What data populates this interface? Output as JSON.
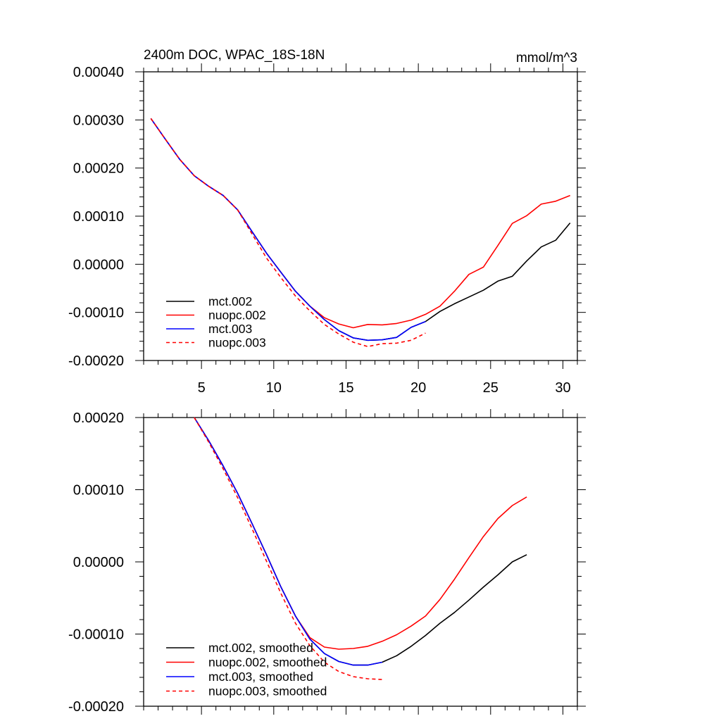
{
  "chart_data": [
    {
      "type": "line",
      "title": "2400m DOC, WPAC_18S-18N",
      "units": "mmol/m^3",
      "xlabel": "",
      "ylabel": "",
      "xlim": [
        1,
        31
      ],
      "ylim": [
        -0.0002,
        0.0004
      ],
      "x_ticks": [
        5,
        10,
        15,
        20,
        25,
        30
      ],
      "x_tick_labels": [
        "5",
        "10",
        "15",
        "20",
        "25",
        "30"
      ],
      "y_ticks": [
        -0.0002,
        -0.0001,
        0.0,
        0.0001,
        0.0002,
        0.0003,
        0.0004
      ],
      "y_tick_labels": [
        "-0.00020",
        "-0.00010",
        "0.00000",
        "0.00010",
        "0.00020",
        "0.00030",
        "0.00040"
      ],
      "legend_position": "bottom-left",
      "series": [
        {
          "name": "mct.002",
          "color": "#000000",
          "dash": "solid",
          "x": [
            1.5,
            2.5,
            3.5,
            4.5,
            5.5,
            6.5,
            7.5,
            8.5,
            9.5,
            10.5,
            11.5,
            12.5,
            13.5,
            14.5,
            15.5,
            16.5,
            17.5,
            18.5,
            19.5,
            20.5,
            21.5,
            22.5,
            23.5,
            24.5,
            25.5,
            26.5,
            27.5,
            28.5,
            29.5,
            30.5
          ],
          "values": [
            0.000303,
            0.00026,
            0.000218,
            0.000184,
            0.000162,
            0.000143,
            0.000113,
            6.8e-05,
            2.3e-05,
            -1.7e-05,
            -5.6e-05,
            -8.7e-05,
            -0.000115,
            -0.000138,
            -0.000153,
            -0.000158,
            -0.000157,
            -0.000152,
            -0.000131,
            -0.000119,
            -9.8e-05,
            -8.2e-05,
            -6.8e-05,
            -5.4e-05,
            -3.5e-05,
            -2.5e-05,
            7e-06,
            3.6e-05,
            5e-05,
            8.6e-05
          ]
        },
        {
          "name": "nuopc.002",
          "color": "#ff0000",
          "dash": "solid",
          "x": [
            1.5,
            2.5,
            3.5,
            4.5,
            5.5,
            6.5,
            7.5,
            8.5,
            9.5,
            10.5,
            11.5,
            12.5,
            13.5,
            14.5,
            15.5,
            16.5,
            17.5,
            18.5,
            19.5,
            20.5,
            21.5,
            22.5,
            23.5,
            24.5,
            25.5,
            26.5,
            27.5,
            28.5,
            29.5,
            30.5
          ],
          "values": [
            0.000303,
            0.00026,
            0.000218,
            0.000184,
            0.000162,
            0.000143,
            0.000113,
            6.8e-05,
            2.3e-05,
            -1.7e-05,
            -5.6e-05,
            -8.7e-05,
            -0.000111,
            -0.000124,
            -0.000132,
            -0.000125,
            -0.000126,
            -0.000123,
            -0.000116,
            -0.000104,
            -8.7e-05,
            -5.6e-05,
            -2.1e-05,
            -6e-06,
            3.9e-05,
            8.5e-05,
            0.000101,
            0.000125,
            0.000131,
            0.000143
          ]
        },
        {
          "name": "mct.003",
          "color": "#0000ff",
          "dash": "solid",
          "x": [
            1.5,
            2.5,
            3.5,
            4.5,
            5.5,
            6.5,
            7.5,
            8.5,
            9.5,
            10.5,
            11.5,
            12.5,
            13.5,
            14.5,
            15.5,
            16.5,
            17.5,
            18.5,
            19.5,
            20.5
          ],
          "values": [
            0.000303,
            0.00026,
            0.000218,
            0.000184,
            0.000162,
            0.000143,
            0.000113,
            6.8e-05,
            2.3e-05,
            -1.7e-05,
            -5.6e-05,
            -8.7e-05,
            -0.000115,
            -0.000138,
            -0.000153,
            -0.000158,
            -0.000157,
            -0.000152,
            -0.000131,
            -0.000119
          ]
        },
        {
          "name": "nuopc.003",
          "color": "#ff0000",
          "dash": "dashed",
          "x": [
            1.5,
            2.5,
            3.5,
            4.5,
            5.5,
            6.5,
            7.5,
            8.5,
            9.5,
            10.5,
            11.5,
            12.5,
            13.5,
            14.5,
            15.5,
            16.5,
            17.5,
            18.5,
            19.5,
            20.5
          ],
          "values": [
            0.000303,
            0.00026,
            0.000218,
            0.000184,
            0.000162,
            0.000143,
            0.000113,
            6.3e-05,
            1.3e-05,
            -2.8e-05,
            -6.6e-05,
            -9.7e-05,
            -0.000125,
            -0.000145,
            -0.000162,
            -0.000171,
            -0.000165,
            -0.000164,
            -0.000158,
            -0.000143
          ]
        }
      ]
    },
    {
      "type": "line",
      "title": "",
      "xlabel": "",
      "ylabel": "",
      "xlim": [
        1,
        31
      ],
      "ylim": [
        -0.0002,
        0.0002
      ],
      "x_ticks": [
        5,
        10,
        15,
        20,
        25,
        30
      ],
      "x_tick_labels": [],
      "y_ticks": [
        -0.0002,
        -0.0001,
        0.0,
        0.0001,
        0.0002
      ],
      "y_tick_labels": [
        "-0.00020",
        "-0.00010",
        "0.00000",
        "0.00010",
        "0.00020"
      ],
      "legend_position": "bottom-left",
      "series": [
        {
          "name": "mct.002, smoothed",
          "color": "#000000",
          "dash": "solid",
          "x": [
            4.5,
            5.5,
            6.5,
            7.5,
            8.5,
            9.5,
            10.5,
            11.5,
            12.5,
            13.5,
            14.5,
            15.5,
            16.5,
            17.5,
            18.5,
            19.5,
            20.5,
            21.5,
            22.5,
            23.5,
            24.5,
            25.5,
            26.5,
            27.5
          ],
          "values": [
            0.0002,
            0.000168,
            0.000133,
            9.5e-05,
            5.3e-05,
            1e-05,
            -3.5e-05,
            -7.5e-05,
            -0.000107,
            -0.000127,
            -0.000138,
            -0.000143,
            -0.000143,
            -0.000139,
            -0.00013,
            -0.000117,
            -0.000102,
            -8.5e-05,
            -7e-05,
            -5.3e-05,
            -3.5e-05,
            -1.8e-05,
            0.0,
            1e-05
          ]
        },
        {
          "name": "nuopc.002, smoothed",
          "color": "#ff0000",
          "dash": "solid",
          "x": [
            4.5,
            5.5,
            6.5,
            7.5,
            8.5,
            9.5,
            10.5,
            11.5,
            12.5,
            13.5,
            14.5,
            15.5,
            16.5,
            17.5,
            18.5,
            19.5,
            20.5,
            21.5,
            22.5,
            23.5,
            24.5,
            25.5,
            26.5,
            27.5
          ],
          "values": [
            0.0002,
            0.000168,
            0.000133,
            9.5e-05,
            5.3e-05,
            1e-05,
            -3.5e-05,
            -7.5e-05,
            -0.000105,
            -0.000118,
            -0.000121,
            -0.00012,
            -0.000117,
            -0.00011,
            -0.000101,
            -8.9e-05,
            -7.5e-05,
            -5.2e-05,
            -2.4e-05,
            6e-06,
            3.5e-05,
            6e-05,
            7.8e-05,
            9e-05
          ]
        },
        {
          "name": "mct.003, smoothed",
          "color": "#0000ff",
          "dash": "solid",
          "x": [
            4.5,
            5.5,
            6.5,
            7.5,
            8.5,
            9.5,
            10.5,
            11.5,
            12.5,
            13.5,
            14.5,
            15.5,
            16.5,
            17.5
          ],
          "values": [
            0.0002,
            0.000168,
            0.000133,
            9.5e-05,
            5.3e-05,
            1e-05,
            -3.5e-05,
            -7.5e-05,
            -0.000107,
            -0.000127,
            -0.000138,
            -0.000143,
            -0.000143,
            -0.000139
          ]
        },
        {
          "name": "nuopc.003, smoothed",
          "color": "#ff0000",
          "dash": "dashed",
          "x": [
            4.5,
            5.5,
            6.5,
            7.5,
            8.5,
            9.5,
            10.5,
            11.5,
            12.5,
            13.5,
            14.5,
            15.5,
            16.5,
            17.5
          ],
          "values": [
            0.0002,
            0.000166,
            0.000129,
            8.9e-05,
            4.6e-05,
            1e-06,
            -4.4e-05,
            -8.5e-05,
            -0.000116,
            -0.000139,
            -0.000152,
            -0.000159,
            -0.000162,
            -0.000163
          ]
        }
      ]
    }
  ]
}
